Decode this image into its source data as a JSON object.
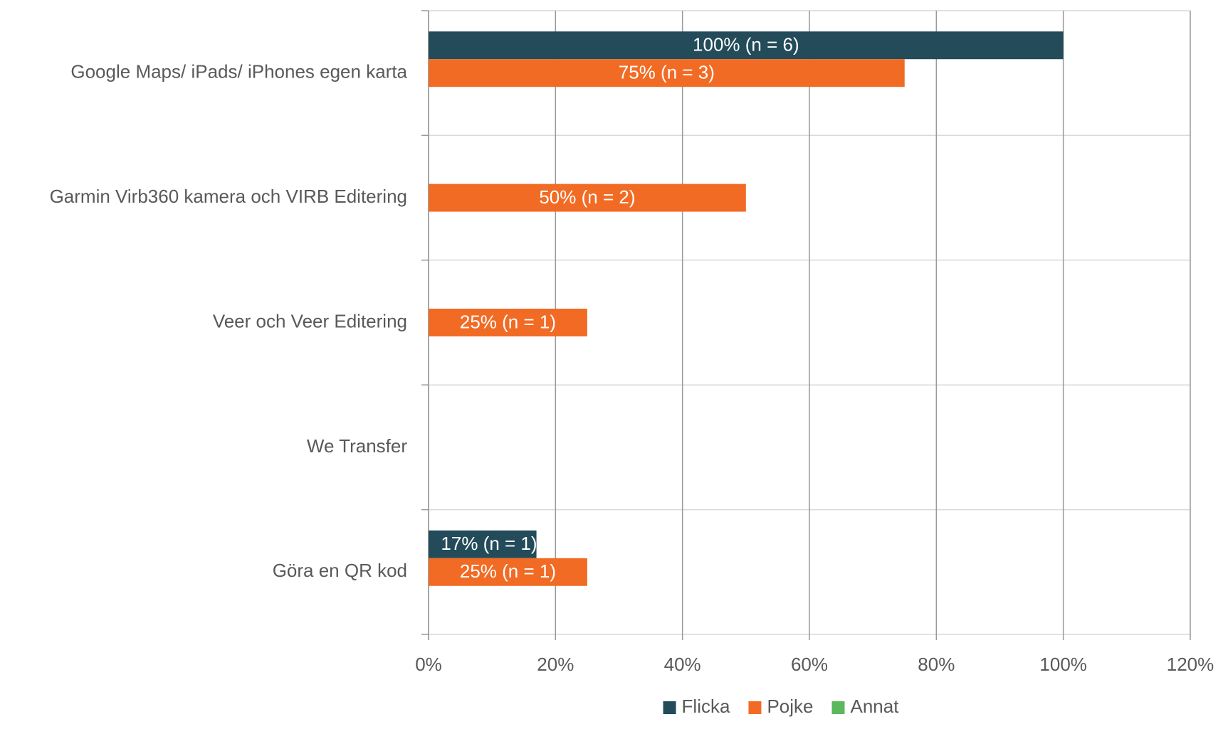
{
  "chart_data": {
    "type": "hbar",
    "categories": [
      "Google Maps/ iPads/ iPhones egen karta",
      "Garmin Virb360 kamera och VIRB Editering",
      "Veer och Veer Editering",
      "We Transfer",
      "Göra en QR kod"
    ],
    "series": [
      {
        "name": "Flicka",
        "color": "#234b59",
        "values": [
          100,
          null,
          null,
          null,
          17
        ],
        "value_labels": [
          "100% (n = 6)",
          null,
          null,
          null,
          "17% (n = 1)"
        ]
      },
      {
        "name": "Pojke",
        "color": "#f26b24",
        "values": [
          75,
          50,
          25,
          null,
          25
        ],
        "value_labels": [
          "75% (n = 3)",
          "50% (n = 2)",
          "25% (n = 1)",
          null,
          "25% (n = 1)"
        ]
      },
      {
        "name": "Annat",
        "color": "#5cb85c",
        "values": [
          null,
          null,
          null,
          null,
          null
        ]
      }
    ],
    "xlim": [
      0,
      120
    ],
    "xticks": [
      {
        "value": 0,
        "label": "0%"
      },
      {
        "value": 20,
        "label": "20%"
      },
      {
        "value": 40,
        "label": "40%"
      },
      {
        "value": 60,
        "label": "60%"
      },
      {
        "value": 80,
        "label": "80%"
      },
      {
        "value": 100,
        "label": "100%"
      },
      {
        "value": 120,
        "label": "120%"
      }
    ],
    "grid": true,
    "legend": "bottom"
  }
}
